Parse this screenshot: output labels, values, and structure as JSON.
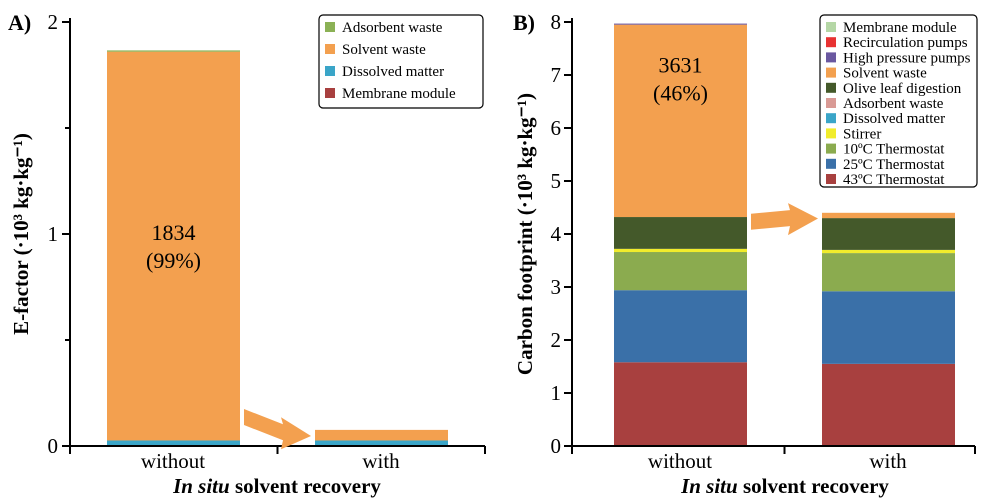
{
  "chart_data": [
    {
      "type": "bar",
      "stacked": true,
      "panel_label": "A)",
      "categories": [
        "without",
        "with"
      ],
      "xlabel_italic": "In situ",
      "xlabel_rest": " solvent recovery",
      "ylabel": "E-factor (·10³ kg·kg⁻¹)",
      "ylim": [
        0,
        2
      ],
      "yticks": [
        0,
        1,
        2
      ],
      "yticks_minor": [
        0.5,
        1.5
      ],
      "legend_position": "top-right",
      "legend_order": [
        "Adsorbent waste",
        "Solvent waste",
        "Dissolved matter",
        "Membrane module"
      ],
      "series": [
        {
          "name": "Membrane module",
          "color": "#a8403f",
          "values": [
            0.001,
            0.001
          ]
        },
        {
          "name": "Dissolved matter",
          "color": "#3aa5c8",
          "values": [
            0.025,
            0.025
          ]
        },
        {
          "name": "Solvent waste",
          "color": "#f3a04f",
          "values": [
            1.834,
            0.05
          ]
        },
        {
          "name": "Adsorbent waste",
          "color": "#8bb155",
          "values": [
            0.006,
            0.0
          ]
        }
      ],
      "annotation": {
        "value": "1834",
        "percent": "(99%)",
        "category": "without"
      },
      "arrow": {
        "from": "without",
        "to": "with",
        "color": "#f3a04f"
      }
    },
    {
      "type": "bar",
      "stacked": true,
      "panel_label": "B)",
      "categories": [
        "without",
        "with"
      ],
      "xlabel_italic": "In situ",
      "xlabel_rest": " solvent recovery",
      "ylabel": "Carbon footprint (·10³ kg·kg⁻¹)",
      "ylim": [
        0,
        8
      ],
      "yticks": [
        0,
        1,
        2,
        3,
        4,
        5,
        6,
        7,
        8
      ],
      "legend_position": "top-right",
      "legend_order": [
        "Membrane module",
        "Recirculation pumps",
        "High pressure pumps",
        "Solvent waste",
        "Olive leaf digestion",
        "Adsorbent waste",
        "Dissolved matter",
        "Stirrer",
        "10ºC Thermostat",
        "25ºC Thermostat",
        "43ºC Thermostat"
      ],
      "series": [
        {
          "name": "43ºC Thermostat",
          "color": "#a8403f",
          "values": [
            1.58,
            1.55
          ]
        },
        {
          "name": "25ºC Thermostat",
          "color": "#3a70a8",
          "values": [
            1.36,
            1.37
          ]
        },
        {
          "name": "10ºC Thermostat",
          "color": "#8bab4f",
          "values": [
            0.72,
            0.72
          ]
        },
        {
          "name": "Stirrer",
          "color": "#f1ec2c",
          "values": [
            0.06,
            0.06
          ]
        },
        {
          "name": "Dissolved matter",
          "color": "#3aa5c8",
          "values": [
            0.0,
            0.0
          ]
        },
        {
          "name": "Adsorbent waste",
          "color": "#d99a95",
          "values": [
            0.0,
            0.0
          ]
        },
        {
          "name": "Olive leaf digestion",
          "color": "#44592a",
          "values": [
            0.6,
            0.6
          ]
        },
        {
          "name": "Solvent waste",
          "color": "#f3a04f",
          "values": [
            3.63,
            0.1
          ]
        },
        {
          "name": "High pressure pumps",
          "color": "#6a58a0",
          "values": [
            0.02,
            0.0
          ]
        },
        {
          "name": "Recirculation pumps",
          "color": "#e83232",
          "values": [
            0.0,
            0.0
          ]
        },
        {
          "name": "Membrane module",
          "color": "#b5d7a6",
          "values": [
            0.0,
            0.0
          ]
        }
      ],
      "annotation": {
        "value": "3631",
        "percent": "(46%)",
        "category": "without"
      },
      "arrow": {
        "from": "without",
        "to": "with",
        "color": "#f3a04f"
      }
    }
  ]
}
